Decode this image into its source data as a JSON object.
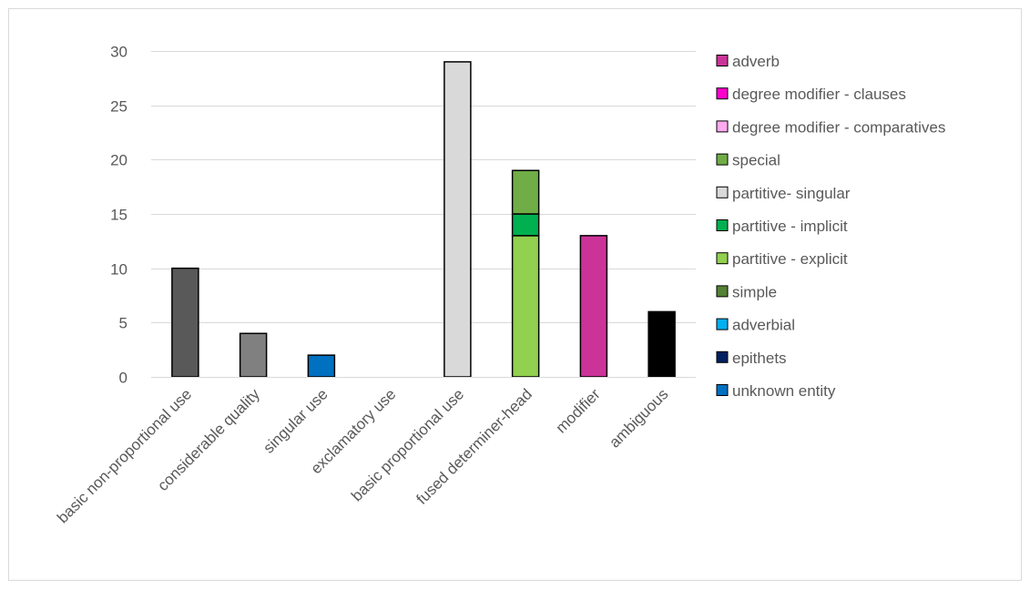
{
  "chart_data": {
    "type": "bar",
    "stacked": true,
    "title": "",
    "xlabel": "",
    "ylabel": "",
    "ylim": [
      0,
      30
    ],
    "yticks": [
      0,
      5,
      10,
      15,
      20,
      25,
      30
    ],
    "grid": true,
    "legend_position": "right",
    "categories": [
      "basic non-proportional use",
      "considerable quality",
      "singular use",
      "exclamatory use",
      "basic proportional use",
      "fused determiner-head",
      "modifier",
      "ambiguous"
    ],
    "series": [
      {
        "name": "adverb",
        "color": "#cc3399",
        "values": [
          0,
          0,
          0,
          0,
          0,
          0,
          13,
          0
        ]
      },
      {
        "name": "degree modifier - clauses",
        "color": "#ff00cc",
        "values": [
          0,
          0,
          0,
          0,
          0,
          0,
          0,
          0
        ]
      },
      {
        "name": "degree modifier - comparatives",
        "color": "#ffaaee",
        "values": [
          0,
          0,
          0,
          0,
          0,
          0,
          0,
          0
        ]
      },
      {
        "name": "special",
        "color": "#70ad47",
        "values": [
          0,
          0,
          0,
          0,
          0,
          4,
          0,
          0
        ]
      },
      {
        "name": "partitive- singular",
        "color": "#d9d9d9",
        "values": [
          0,
          0,
          0,
          0,
          29,
          0,
          0,
          0
        ]
      },
      {
        "name": "partitive - implicit",
        "color": "#00b050",
        "values": [
          0,
          0,
          0,
          0,
          0,
          2,
          0,
          0
        ]
      },
      {
        "name": "partitive - explicit",
        "color": "#92d050",
        "values": [
          0,
          0,
          0,
          0,
          0,
          13,
          0,
          0
        ]
      },
      {
        "name": "simple",
        "color": "#548235",
        "values": [
          0,
          0,
          0,
          0,
          0,
          0,
          0,
          0
        ]
      },
      {
        "name": "adverbial",
        "color": "#00b0f0",
        "values": [
          0,
          0,
          0,
          0,
          0,
          0,
          0,
          0
        ]
      },
      {
        "name": "epithets",
        "color": "#002060",
        "values": [
          0,
          0,
          0,
          0,
          0,
          0,
          0,
          0
        ]
      },
      {
        "name": "unknown entity",
        "color": "#0070c0",
        "values": [
          0,
          0,
          2,
          0,
          0,
          0,
          0,
          0
        ]
      }
    ],
    "extra_series": [
      {
        "name": "",
        "color": "#595959",
        "values": [
          10,
          0,
          0,
          0,
          0,
          0,
          0,
          0
        ]
      },
      {
        "name": "",
        "color": "#808080",
        "values": [
          0,
          4,
          0,
          0,
          0,
          0,
          0,
          0
        ]
      },
      {
        "name": "",
        "color": "#000000",
        "values": [
          0,
          0,
          0,
          0,
          0,
          0,
          0,
          6
        ]
      }
    ],
    "stack_order": [
      "partitive - explicit",
      "partitive - implicit",
      "special"
    ]
  }
}
